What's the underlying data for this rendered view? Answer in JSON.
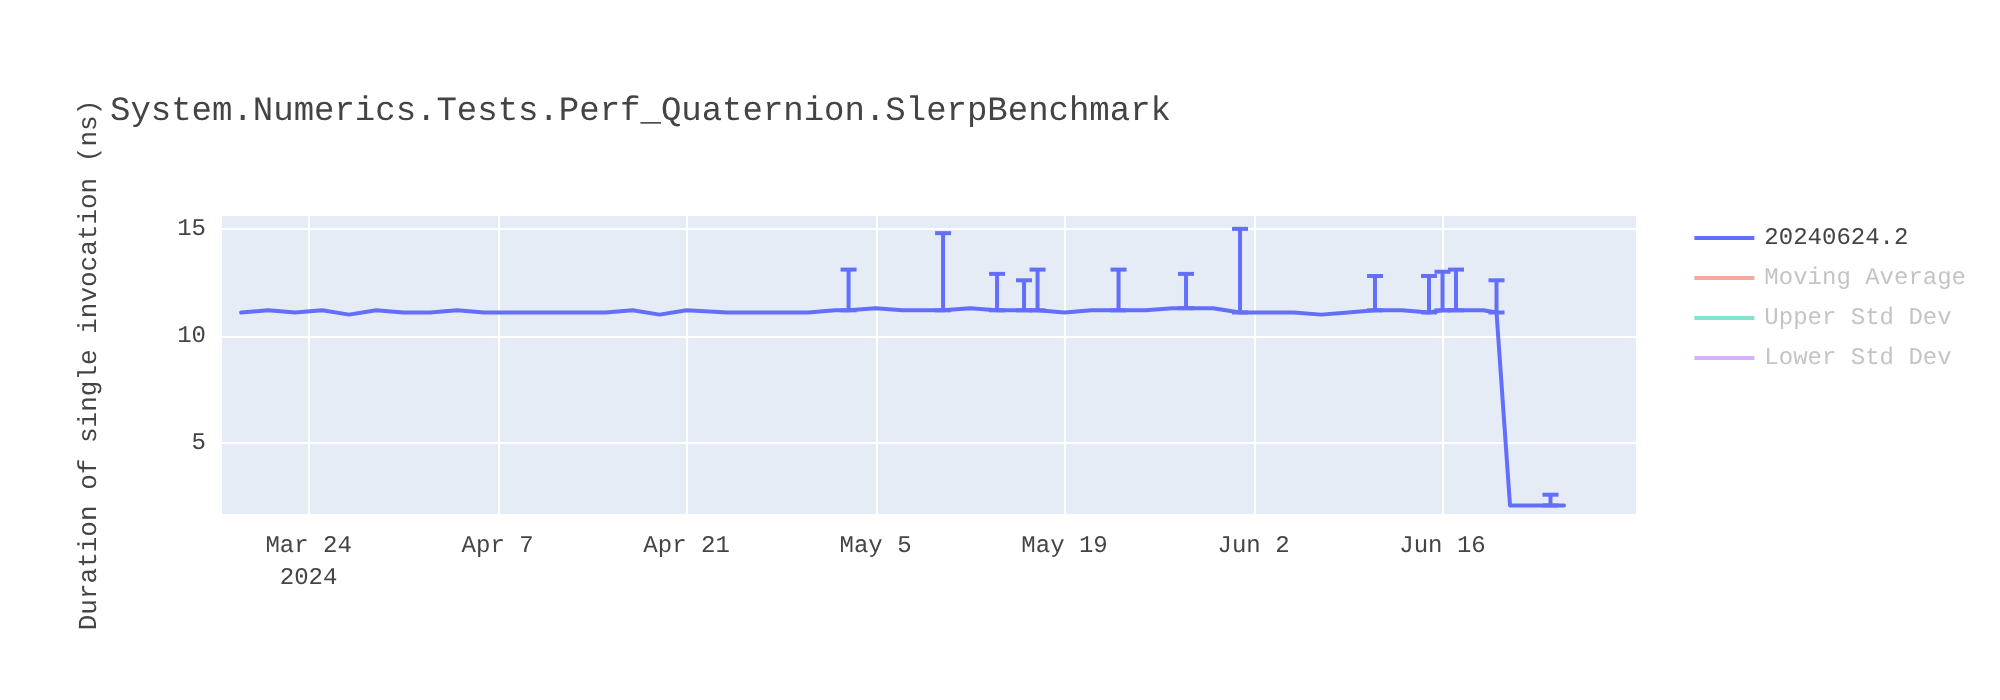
{
  "chart_data": {
    "type": "line",
    "title": "System.Numerics.Tests.Perf_Quaternion.SlerpBenchmark",
    "ylabel": "Duration of single invocation (ns)",
    "xlim": [
      "2024-03-17T14:00",
      "2024-06-30T08:00"
    ],
    "xticks": [
      {
        "value": "2024-03-24",
        "label": "Mar 24\n2024"
      },
      {
        "value": "2024-04-07",
        "label": "Apr 7"
      },
      {
        "value": "2024-04-21",
        "label": "Apr 21"
      },
      {
        "value": "2024-05-05",
        "label": "May 5"
      },
      {
        "value": "2024-05-19",
        "label": "May 19"
      },
      {
        "value": "2024-06-02",
        "label": "Jun 2"
      },
      {
        "value": "2024-06-16",
        "label": "Jun 16"
      }
    ],
    "ylim": [
      1.7,
      15.6
    ],
    "yticks": [
      5,
      10,
      15
    ],
    "grid": true,
    "legend": "top right",
    "marker": "none",
    "line_style": "solid",
    "series": [
      {
        "name": "20240624.2",
        "color": "#636efa",
        "x": [
          "2024-03-19",
          "2024-03-21",
          "2024-03-23",
          "2024-03-25",
          "2024-03-27",
          "2024-03-29",
          "2024-03-31",
          "2024-04-02",
          "2024-04-04",
          "2024-04-06",
          "2024-04-09",
          "2024-04-12",
          "2024-04-15",
          "2024-04-17",
          "2024-04-19",
          "2024-04-21",
          "2024-04-24",
          "2024-04-27",
          "2024-04-30",
          "2024-05-02",
          "2024-05-03",
          "2024-05-05",
          "2024-05-07",
          "2024-05-09",
          "2024-05-10",
          "2024-05-12",
          "2024-05-14",
          "2024-05-16",
          "2024-05-17",
          "2024-05-19",
          "2024-05-21",
          "2024-05-23",
          "2024-05-25",
          "2024-05-27",
          "2024-05-28",
          "2024-05-30",
          "2024-06-01",
          "2024-06-03",
          "2024-06-05",
          "2024-06-07",
          "2024-06-09",
          "2024-06-11",
          "2024-06-13",
          "2024-06-15",
          "2024-06-16",
          "2024-06-17",
          "2024-06-19",
          "2024-06-20",
          "2024-06-21",
          "2024-06-22",
          "2024-06-23",
          "2024-06-24",
          "2024-06-25"
        ],
        "values": [
          11.1,
          11.2,
          11.1,
          11.2,
          11.0,
          11.2,
          11.1,
          11.1,
          11.2,
          11.1,
          11.1,
          11.1,
          11.1,
          11.2,
          11.0,
          11.2,
          11.1,
          11.1,
          11.1,
          11.2,
          11.2,
          11.3,
          11.2,
          11.2,
          11.2,
          11.3,
          11.2,
          11.2,
          11.2,
          11.1,
          11.2,
          11.2,
          11.2,
          11.3,
          11.3,
          11.3,
          11.1,
          11.1,
          11.1,
          11.0,
          11.1,
          11.2,
          11.2,
          11.1,
          11.2,
          11.2,
          11.2,
          11.1,
          2.1,
          2.1,
          2.1,
          2.1,
          2.1
        ],
        "errors": [
          null,
          null,
          null,
          null,
          null,
          null,
          null,
          null,
          null,
          null,
          null,
          null,
          null,
          null,
          null,
          null,
          null,
          null,
          null,
          null,
          [
            11.2,
            13.1
          ],
          null,
          null,
          null,
          [
            11.2,
            14.8
          ],
          null,
          [
            11.2,
            12.9
          ],
          [
            11.2,
            12.6
          ],
          [
            11.2,
            13.1
          ],
          null,
          null,
          [
            11.2,
            13.1
          ],
          null,
          null,
          [
            11.3,
            12.9
          ],
          null,
          [
            11.1,
            15.0
          ],
          null,
          null,
          null,
          null,
          [
            11.2,
            12.8
          ],
          null,
          [
            11.1,
            12.8
          ],
          [
            11.2,
            13.0
          ],
          [
            11.2,
            13.1
          ],
          null,
          [
            11.1,
            12.6
          ],
          null,
          null,
          null,
          [
            2.1,
            2.6
          ],
          null
        ]
      },
      {
        "name": "Moving Average",
        "color": "#f5ab9c"
      },
      {
        "name": "Upper Std Dev",
        "color": "#80e5cb"
      },
      {
        "name": "Lower Std Dev",
        "color": "#d5b1fd"
      }
    ]
  }
}
